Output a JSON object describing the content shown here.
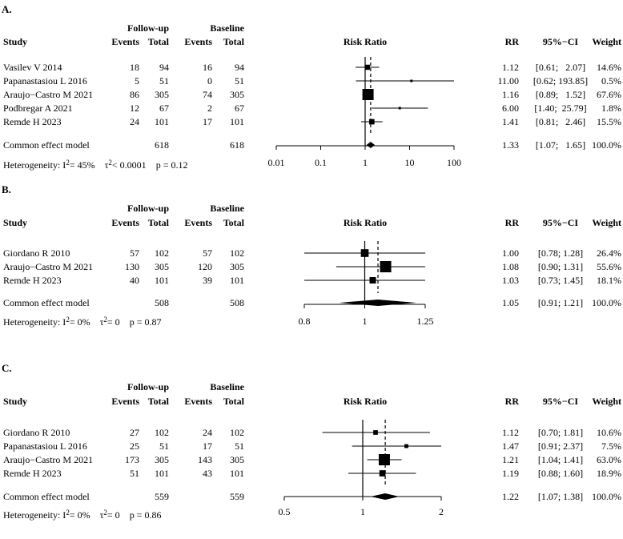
{
  "chart_data": [
    {
      "type": "forest",
      "panel_label": "A.",
      "group_headers": {
        "followup": "Follow-up",
        "baseline": "Baseline"
      },
      "columns": {
        "study": "Study",
        "events1": "Events",
        "total1": "Total",
        "events2": "Events",
        "total2": "Total",
        "plot": "Risk Ratio",
        "rr": "RR",
        "ci": "95%−CI",
        "weight": "Weight"
      },
      "scale": "log",
      "xlim": [
        0.01,
        100
      ],
      "ticks": [
        0.01,
        0.1,
        1,
        10,
        100
      ],
      "tick_labels": [
        "0.01",
        "0.1",
        "1",
        "10",
        "100"
      ],
      "studies": [
        {
          "study": "Vasilev V 2014",
          "e1": "18",
          "n1": "94",
          "e2": "16",
          "n2": "94",
          "rr": 1.12,
          "lo": 0.61,
          "hi": 2.07,
          "rr_text": "1.12",
          "ci_text": "[0.61;   2.07]",
          "weight": 14.6,
          "weight_text": "14.6%"
        },
        {
          "study": "Papanastasiou L 2016",
          "e1": "5",
          "n1": "51",
          "e2": "0",
          "n2": "51",
          "rr": 11.0,
          "lo": 0.62,
          "hi": 193.85,
          "rr_text": "11.00",
          "ci_text": "[0.62; 193.85]",
          "weight": 0.5,
          "weight_text": "0.5%"
        },
        {
          "study": "Araujo−Castro M 2021",
          "e1": "86",
          "n1": "305",
          "e2": "74",
          "n2": "305",
          "rr": 1.16,
          "lo": 0.89,
          "hi": 1.52,
          "rr_text": "1.16",
          "ci_text": "[0.89;   1.52]",
          "weight": 67.6,
          "weight_text": "67.6%"
        },
        {
          "study": "Podbregar A 2021",
          "e1": "12",
          "n1": "67",
          "e2": "2",
          "n2": "67",
          "rr": 6.0,
          "lo": 1.4,
          "hi": 25.79,
          "rr_text": "6.00",
          "ci_text": "[1.40;  25.79]",
          "weight": 1.8,
          "weight_text": "1.8%"
        },
        {
          "study": "Remde H 2023",
          "e1": "24",
          "n1": "101",
          "e2": "17",
          "n2": "101",
          "rr": 1.41,
          "lo": 0.81,
          "hi": 2.46,
          "rr_text": "1.41",
          "ci_text": "[0.81;   2.46]",
          "weight": 15.5,
          "weight_text": "15.5%"
        }
      ],
      "common": {
        "label": "Common effect model",
        "n1": "618",
        "n2": "618",
        "rr": 1.33,
        "lo": 1.07,
        "hi": 1.65,
        "rr_text": "1.33",
        "ci_text": "[1.07;   1.65]",
        "weight_text": "100.0%"
      },
      "heterogeneity": {
        "prefix": "Heterogeneity: I",
        "i2": "= 45%",
        "tau_prefix": "τ",
        "tau": "< 0.0001",
        "p": "p = 0.12"
      }
    },
    {
      "type": "forest",
      "panel_label": "B.",
      "group_headers": {
        "followup": "Follow-up",
        "baseline": "Baseline"
      },
      "columns": {
        "study": "Study",
        "events1": "Events",
        "total1": "Total",
        "events2": "Events",
        "total2": "Total",
        "plot": "Risk Ratio",
        "rr": "RR",
        "ci": "95%−CI",
        "weight": "Weight"
      },
      "scale": "log",
      "xlim": [
        0.8,
        1.25
      ],
      "ticks": [
        0.8,
        1,
        1.25
      ],
      "tick_labels": [
        "0.8",
        "1",
        "1.25"
      ],
      "studies": [
        {
          "study": "Giordano R 2010",
          "e1": "57",
          "n1": "102",
          "e2": "57",
          "n2": "102",
          "rr": 1.0,
          "lo": 0.78,
          "hi": 1.28,
          "rr_text": "1.00",
          "ci_text": "[0.78; 1.28]",
          "weight": 26.4,
          "weight_text": "26.4%"
        },
        {
          "study": "Araujo−Castro M 2021",
          "e1": "130",
          "n1": "305",
          "e2": "120",
          "n2": "305",
          "rr": 1.08,
          "lo": 0.9,
          "hi": 1.31,
          "rr_text": "1.08",
          "ci_text": "[0.90; 1.31]",
          "weight": 55.6,
          "weight_text": "55.6%"
        },
        {
          "study": "Remde H 2023",
          "e1": "40",
          "n1": "101",
          "e2": "39",
          "n2": "101",
          "rr": 1.03,
          "lo": 0.73,
          "hi": 1.45,
          "rr_text": "1.03",
          "ci_text": "[0.73; 1.45]",
          "weight": 18.1,
          "weight_text": "18.1%"
        }
      ],
      "common": {
        "label": "Common effect model",
        "n1": "508",
        "n2": "508",
        "rr": 1.05,
        "lo": 0.91,
        "hi": 1.21,
        "rr_text": "1.05",
        "ci_text": "[0.91; 1.21]",
        "weight_text": "100.0%"
      },
      "heterogeneity": {
        "prefix": "Heterogeneity: I",
        "i2": "= 0%",
        "tau_prefix": "τ",
        "tau": "= 0",
        "p": "p = 0.87"
      }
    },
    {
      "type": "forest",
      "panel_label": "C.",
      "group_headers": {
        "followup": "Follow-up",
        "baseline": "Baseline"
      },
      "columns": {
        "study": "Study",
        "events1": "Events",
        "total1": "Total",
        "events2": "Events",
        "total2": "Total",
        "plot": "Risk Ratio",
        "rr": "RR",
        "ci": "95%−CI",
        "weight": "Weight"
      },
      "scale": "log",
      "xlim": [
        0.5,
        2
      ],
      "ticks": [
        0.5,
        1,
        2
      ],
      "tick_labels": [
        "0.5",
        "1",
        "2"
      ],
      "studies": [
        {
          "study": "Giordano R 2010",
          "e1": "27",
          "n1": "102",
          "e2": "24",
          "n2": "102",
          "rr": 1.12,
          "lo": 0.7,
          "hi": 1.81,
          "rr_text": "1.12",
          "ci_text": "[0.70; 1.81]",
          "weight": 10.6,
          "weight_text": "10.6%"
        },
        {
          "study": "Papanastasiou L 2016",
          "e1": "25",
          "n1": "51",
          "e2": "17",
          "n2": "51",
          "rr": 1.47,
          "lo": 0.91,
          "hi": 2.37,
          "rr_text": "1.47",
          "ci_text": "[0.91; 2.37]",
          "weight": 7.5,
          "weight_text": "7.5%"
        },
        {
          "study": "Araujo−Castro M 2021",
          "e1": "173",
          "n1": "305",
          "e2": "143",
          "n2": "305",
          "rr": 1.21,
          "lo": 1.04,
          "hi": 1.41,
          "rr_text": "1.21",
          "ci_text": "[1.04; 1.41]",
          "weight": 63.0,
          "weight_text": "63.0%"
        },
        {
          "study": "Remde H 2023",
          "e1": "51",
          "n1": "101",
          "e2": "43",
          "n2": "101",
          "rr": 1.19,
          "lo": 0.88,
          "hi": 1.6,
          "rr_text": "1.19",
          "ci_text": "[0.88; 1.60]",
          "weight": 18.9,
          "weight_text": "18.9%"
        }
      ],
      "common": {
        "label": "Common effect model",
        "n1": "559",
        "n2": "559",
        "rr": 1.22,
        "lo": 1.07,
        "hi": 1.38,
        "rr_text": "1.22",
        "ci_text": "[1.07; 1.38]",
        "weight_text": "100.0%"
      },
      "heterogeneity": {
        "prefix": "Heterogeneity: I",
        "i2": "= 0%",
        "tau_prefix": "τ",
        "tau": "= 0",
        "p": "p = 0.86"
      }
    }
  ]
}
